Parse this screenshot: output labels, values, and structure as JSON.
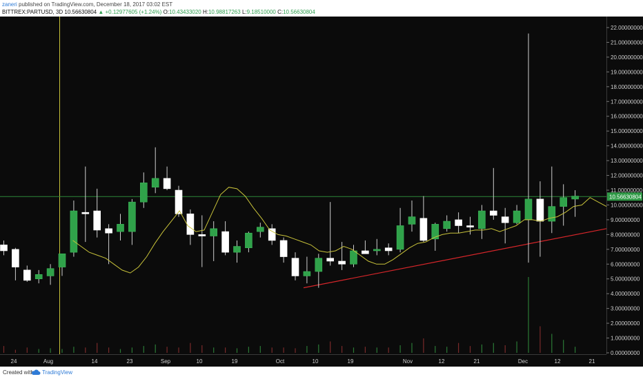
{
  "header": {
    "author": "zaneri",
    "published_text": "published on TradingView.com, December 18, 2017 03:02 EST",
    "symbol": "BITTREX:PARTUSD, 3D",
    "last": "10.56630804",
    "change": "▲ +0.12977605 (+1.24%)",
    "open_label": "O:",
    "open": "10.43433020",
    "high_label": "H:",
    "high": "10.98817263",
    "low_label": "L:",
    "low": "9.18510000",
    "close_label": "C:",
    "close": "10.56630804"
  },
  "footer": {
    "created_with": "Created with",
    "brand": "TradingView"
  },
  "chart_data": {
    "type": "candlestick",
    "symbol": "BITTREX:PARTUSD",
    "interval": "3D",
    "ylim": [
      0,
      22.5
    ],
    "yticks": [
      "22.00000000",
      "21.00000000",
      "20.00000000",
      "19.00000000",
      "18.00000000",
      "17.00000000",
      "16.00000000",
      "15.00000000",
      "14.00000000",
      "13.00000000",
      "12.00000000",
      "11.00000000",
      "10.00000000",
      "9.00000000",
      "8.00000000",
      "7.00000000",
      "6.00000000",
      "5.00000000",
      "4.00000000",
      "3.00000000",
      "2.00000000",
      "1.00000000",
      "0.00000000"
    ],
    "price_line": 10.56630804,
    "price_label": "10.56630804",
    "xticks": [
      "24",
      "Aug",
      "14",
      "23",
      "Sep",
      "10",
      "19",
      "Oct",
      "10",
      "19",
      "Nov",
      "12",
      "21",
      "Dec",
      "12",
      "21"
    ],
    "candles": [
      {
        "o": 7.3,
        "h": 7.6,
        "l": 6.6,
        "c": 6.9
      },
      {
        "o": 7.0,
        "h": 7.1,
        "l": 4.9,
        "c": 5.8
      },
      {
        "o": 5.6,
        "h": 5.9,
        "l": 4.8,
        "c": 4.9
      },
      {
        "o": 5.0,
        "h": 5.6,
        "l": 4.7,
        "c": 5.3
      },
      {
        "o": 5.2,
        "h": 6.0,
        "l": 4.6,
        "c": 5.7
      },
      {
        "o": 5.8,
        "h": 6.6,
        "l": 5.2,
        "c": 6.7
      },
      {
        "o": 6.8,
        "h": 10.3,
        "l": 6.5,
        "c": 9.6
      },
      {
        "o": 9.5,
        "h": 12.6,
        "l": 7.5,
        "c": 9.4
      },
      {
        "o": 9.6,
        "h": 11.1,
        "l": 7.8,
        "c": 8.3
      },
      {
        "o": 8.4,
        "h": 8.7,
        "l": 6.0,
        "c": 8.1
      },
      {
        "o": 8.2,
        "h": 9.4,
        "l": 7.6,
        "c": 8.7
      },
      {
        "o": 8.2,
        "h": 10.4,
        "l": 7.3,
        "c": 10.2
      },
      {
        "o": 10.2,
        "h": 12.2,
        "l": 9.8,
        "c": 11.5
      },
      {
        "o": 11.2,
        "h": 13.9,
        "l": 10.8,
        "c": 11.8
      },
      {
        "o": 11.8,
        "h": 12.6,
        "l": 11.0,
        "c": 11.1
      },
      {
        "o": 11.0,
        "h": 11.3,
        "l": 9.2,
        "c": 9.4
      },
      {
        "o": 9.4,
        "h": 9.7,
        "l": 7.3,
        "c": 8.0
      },
      {
        "o": 8.0,
        "h": 9.3,
        "l": 5.8,
        "c": 7.9
      },
      {
        "o": 7.9,
        "h": 8.9,
        "l": 6.2,
        "c": 8.4
      },
      {
        "o": 8.2,
        "h": 8.9,
        "l": 6.6,
        "c": 6.8
      },
      {
        "o": 6.8,
        "h": 7.6,
        "l": 6.1,
        "c": 7.2
      },
      {
        "o": 7.1,
        "h": 8.2,
        "l": 6.8,
        "c": 8.1
      },
      {
        "o": 8.2,
        "h": 8.8,
        "l": 7.8,
        "c": 8.5
      },
      {
        "o": 8.4,
        "h": 8.7,
        "l": 7.3,
        "c": 7.6
      },
      {
        "o": 7.6,
        "h": 7.8,
        "l": 6.1,
        "c": 6.5
      },
      {
        "o": 6.4,
        "h": 6.8,
        "l": 4.9,
        "c": 5.2
      },
      {
        "o": 5.2,
        "h": 6.5,
        "l": 4.7,
        "c": 5.5
      },
      {
        "o": 5.5,
        "h": 6.7,
        "l": 4.4,
        "c": 6.4
      },
      {
        "o": 6.4,
        "h": 10.2,
        "l": 5.9,
        "c": 6.2
      },
      {
        "o": 6.2,
        "h": 7.5,
        "l": 5.6,
        "c": 6.0
      },
      {
        "o": 6.0,
        "h": 7.3,
        "l": 5.8,
        "c": 6.9
      },
      {
        "o": 6.9,
        "h": 7.6,
        "l": 6.7,
        "c": 6.7
      },
      {
        "o": 6.9,
        "h": 7.7,
        "l": 6.6,
        "c": 7.0
      },
      {
        "o": 7.1,
        "h": 7.4,
        "l": 6.6,
        "c": 6.9
      },
      {
        "o": 7.0,
        "h": 9.8,
        "l": 6.8,
        "c": 8.6
      },
      {
        "o": 8.7,
        "h": 10.3,
        "l": 8.2,
        "c": 9.2
      },
      {
        "o": 9.1,
        "h": 10.6,
        "l": 7.5,
        "c": 7.6
      },
      {
        "o": 7.7,
        "h": 8.8,
        "l": 6.9,
        "c": 8.7
      },
      {
        "o": 8.4,
        "h": 9.3,
        "l": 8.2,
        "c": 8.9
      },
      {
        "o": 9.0,
        "h": 9.5,
        "l": 8.1,
        "c": 8.6
      },
      {
        "o": 8.6,
        "h": 9.2,
        "l": 8.0,
        "c": 8.5
      },
      {
        "o": 8.4,
        "h": 10.0,
        "l": 7.7,
        "c": 9.6
      },
      {
        "o": 9.6,
        "h": 12.5,
        "l": 9.0,
        "c": 9.3
      },
      {
        "o": 9.2,
        "h": 9.8,
        "l": 7.4,
        "c": 8.8
      },
      {
        "o": 8.8,
        "h": 10.0,
        "l": 8.7,
        "c": 9.6
      },
      {
        "o": 9.0,
        "h": 21.6,
        "l": 6.1,
        "c": 10.4
      },
      {
        "o": 10.4,
        "h": 11.6,
        "l": 6.5,
        "c": 8.9
      },
      {
        "o": 8.9,
        "h": 12.6,
        "l": 8.1,
        "c": 9.9
      },
      {
        "o": 9.9,
        "h": 11.4,
        "l": 8.6,
        "c": 10.5
      },
      {
        "o": 10.4,
        "h": 11.0,
        "l": 9.2,
        "c": 10.6
      }
    ],
    "ma": [
      7.6,
      7.2,
      6.8,
      6.6,
      6.4,
      6.0,
      5.6,
      5.4,
      5.8,
      6.5,
      7.4,
      8.2,
      8.9,
      9.6,
      8.6,
      8.2,
      8.3,
      9.5,
      10.7,
      11.2,
      11.1,
      10.6,
      9.8,
      9.1,
      8.3,
      8.0,
      7.9,
      7.7,
      7.5,
      7.3,
      6.9,
      6.8,
      6.9,
      7.2,
      7.0,
      6.6,
      6.2,
      6.0,
      6.0,
      6.3,
      6.7,
      7.1,
      7.4,
      7.5,
      7.8,
      8.0,
      8.1,
      8.1,
      8.2,
      8.3,
      8.3,
      8.4,
      8.2,
      8.4,
      8.6,
      9.0,
      9.0,
      8.9,
      9.1,
      9.2,
      9.5,
      9.9,
      10.0,
      10.5,
      10.2,
      9.9
    ],
    "trendline": [
      [
        25,
        4.4
      ],
      [
        55,
        8.4
      ]
    ],
    "volume_scale_max": 2.5,
    "volume": [
      0.4,
      0.15,
      0.3,
      0.2,
      0.25,
      0.2,
      0.35,
      0.3,
      0.6,
      0.3,
      0.2,
      0.3,
      0.4,
      0.5,
      0.35,
      0.3,
      0.6,
      0.45,
      0.3,
      0.3,
      0.25,
      0.35,
      0.4,
      0.3,
      0.3,
      0.25,
      0.4,
      0.5,
      0.7,
      0.4,
      0.3,
      0.35,
      0.3,
      0.3,
      0.45,
      0.6,
      0.9,
      0.4,
      0.35,
      0.6,
      0.4,
      0.5,
      0.6,
      0.45,
      0.7,
      5.6,
      1.7,
      1.2,
      0.8,
      0.35
    ],
    "volume_up": [
      false,
      false,
      false,
      true,
      true,
      true,
      true,
      false,
      false,
      false,
      true,
      true,
      true,
      true,
      false,
      false,
      false,
      false,
      true,
      false,
      true,
      true,
      true,
      false,
      false,
      false,
      true,
      true,
      false,
      false,
      true,
      false,
      true,
      false,
      true,
      true,
      false,
      true,
      true,
      false,
      false,
      true,
      true,
      false,
      true,
      true,
      false,
      true,
      true,
      true
    ],
    "colors": {
      "background": "#0b0b0b",
      "up": "#30a24a",
      "down": "#ffffff",
      "wick": "#cfcfcf",
      "ma": "#c9c33a",
      "trendline": "#d8262a",
      "price_line": "#2c8a3a",
      "price_label_bg": "#2f9a46",
      "crosshair": "#c9c33a",
      "axis_text": "#d0d0d0",
      "grid": "#1d1d1d"
    }
  }
}
